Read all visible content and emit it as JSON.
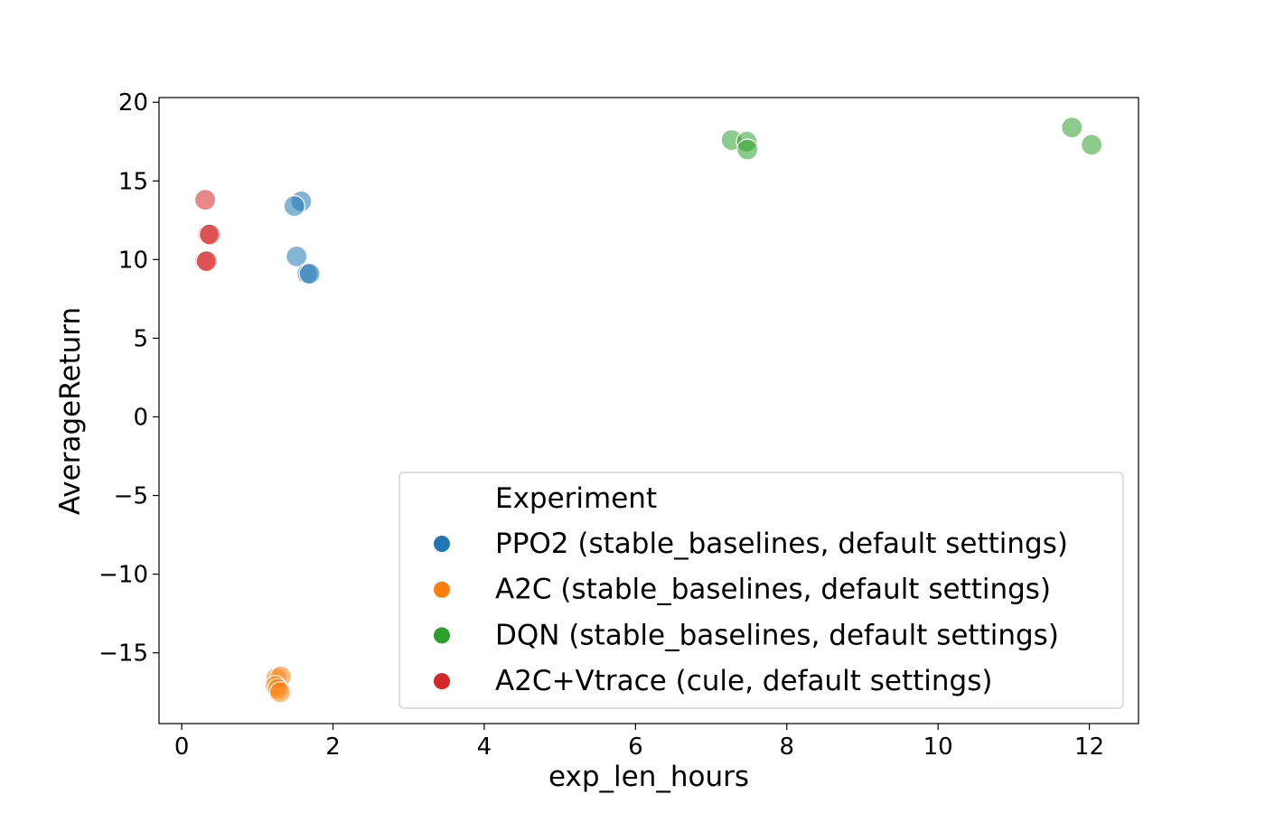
{
  "chart_data": {
    "type": "scatter",
    "title": "",
    "xlabel": "exp_len_hours",
    "ylabel": "AverageReturn",
    "xlim": [
      -0.3,
      12.65
    ],
    "ylim": [
      -19.5,
      20.3
    ],
    "xticks": [
      0,
      2,
      4,
      6,
      8,
      10,
      12
    ],
    "yticks": [
      20,
      15,
      10,
      5,
      0,
      -5,
      -10,
      -15
    ],
    "ytick_labels": [
      "20",
      "15",
      "10",
      "5",
      "0",
      "−5",
      "−10",
      "−15"
    ],
    "grid": false,
    "legend": {
      "title": "Experiment",
      "placement": "lower-right"
    },
    "series": [
      {
        "name": "PPO2 (stable_baselines, default settings)",
        "color": "#1f77b4",
        "points": [
          [
            1.58,
            13.7
          ],
          [
            1.49,
            13.4
          ],
          [
            1.52,
            10.2
          ],
          [
            1.66,
            9.1
          ],
          [
            1.69,
            9.1
          ]
        ]
      },
      {
        "name": "A2C (stable_baselines, default settings)",
        "color": "#ff7f0e",
        "points": [
          [
            1.25,
            -16.6
          ],
          [
            1.31,
            -16.5
          ],
          [
            1.24,
            -17.1
          ],
          [
            1.27,
            -17.3
          ],
          [
            1.3,
            -17.5
          ]
        ]
      },
      {
        "name": "DQN (stable_baselines, default settings)",
        "color": "#2ca02c",
        "points": [
          [
            7.27,
            17.6
          ],
          [
            7.47,
            17.5
          ],
          [
            7.48,
            17.0
          ],
          [
            11.77,
            18.4
          ],
          [
            12.03,
            17.3
          ]
        ]
      },
      {
        "name": "A2C+Vtrace (cule, default settings)",
        "color": "#d62728",
        "points": [
          [
            0.31,
            13.8
          ],
          [
            0.35,
            11.6
          ],
          [
            0.37,
            11.6
          ],
          [
            0.31,
            9.9
          ],
          [
            0.33,
            9.9
          ]
        ]
      }
    ]
  }
}
